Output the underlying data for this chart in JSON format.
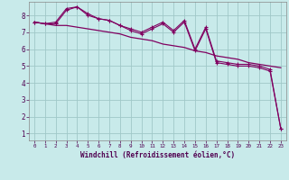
{
  "xlabel": "Windchill (Refroidissement éolien,°C)",
  "background_color": "#c8eaea",
  "grid_color": "#a0c8c8",
  "line_color": "#800060",
  "x_ticks": [
    0,
    1,
    2,
    3,
    4,
    5,
    6,
    7,
    8,
    9,
    10,
    11,
    12,
    13,
    14,
    15,
    16,
    17,
    18,
    19,
    20,
    21,
    22,
    23
  ],
  "y_ticks": [
    1,
    2,
    3,
    4,
    5,
    6,
    7,
    8
  ],
  "ylim": [
    0.6,
    8.8
  ],
  "xlim": [
    -0.5,
    23.5
  ],
  "line1_x": [
    0,
    1,
    2,
    3,
    4,
    5,
    6,
    7,
    8,
    9,
    10,
    11,
    12,
    13,
    14,
    15,
    16,
    17,
    18,
    19,
    20,
    21,
    22,
    23
  ],
  "line1_y": [
    7.6,
    7.5,
    7.4,
    7.4,
    7.3,
    7.2,
    7.1,
    7.0,
    6.9,
    6.7,
    6.6,
    6.5,
    6.3,
    6.2,
    6.1,
    5.9,
    5.8,
    5.6,
    5.5,
    5.4,
    5.2,
    5.1,
    5.0,
    4.9
  ],
  "line2_x": [
    0,
    1,
    2,
    3,
    4,
    5,
    6,
    7,
    8,
    9,
    10,
    11,
    12,
    13,
    14,
    15,
    16,
    17,
    18,
    19,
    20,
    21,
    22,
    23
  ],
  "line2_y": [
    7.6,
    7.5,
    7.6,
    8.4,
    8.5,
    8.1,
    7.8,
    7.7,
    7.4,
    7.2,
    7.0,
    7.3,
    7.6,
    7.1,
    7.7,
    6.0,
    7.3,
    5.3,
    5.2,
    5.1,
    5.1,
    5.0,
    4.8,
    1.3
  ],
  "line3_x": [
    0,
    1,
    2,
    3,
    4,
    5,
    6,
    7,
    8,
    9,
    10,
    11,
    12,
    13,
    14,
    15,
    16,
    17,
    18,
    19,
    20,
    21,
    22,
    23
  ],
  "line3_y": [
    7.6,
    7.5,
    7.5,
    8.3,
    8.5,
    8.0,
    7.8,
    7.7,
    7.4,
    7.1,
    6.9,
    7.2,
    7.5,
    7.0,
    7.6,
    5.9,
    7.2,
    5.2,
    5.1,
    5.0,
    5.0,
    4.9,
    4.7,
    1.3
  ]
}
